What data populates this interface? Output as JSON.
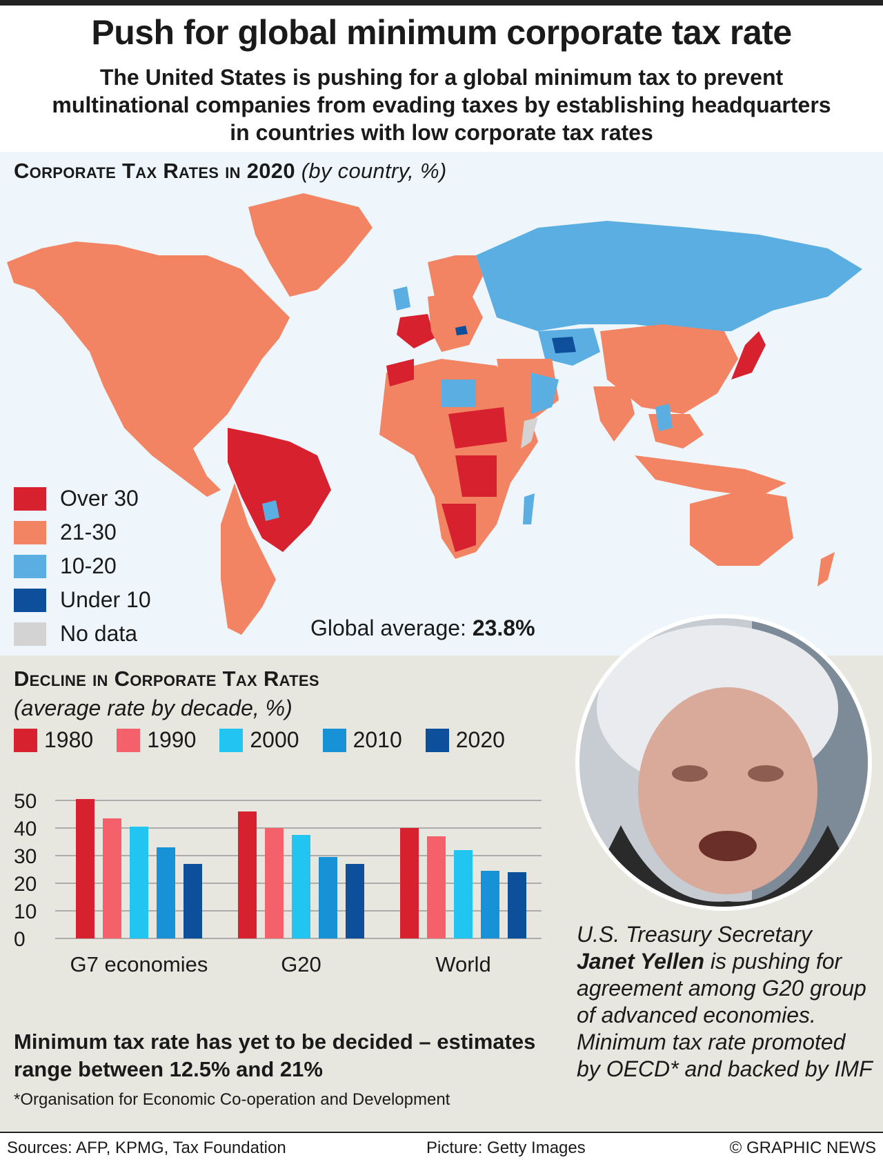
{
  "header": {
    "title": "Push for global minimum corporate tax rate",
    "subtitle": "The United States is pushing for a global minimum tax to prevent multinational companies from evading taxes by establishing headquarters in countries with low corporate tax rates"
  },
  "map": {
    "heading": "Corporate Tax Rates in 2020",
    "heading_note": "(by country, %)",
    "legend": [
      {
        "label": "Over 30",
        "color": "#d7212f"
      },
      {
        "label": "21-30",
        "color": "#f28464"
      },
      {
        "label": "10-20",
        "color": "#5aaee1"
      },
      {
        "label": "Under 10",
        "color": "#0e4f9c"
      },
      {
        "label": "No data",
        "color": "#d3d3d3"
      }
    ],
    "global_average_label": "Global average:",
    "global_average_value": "23.8%"
  },
  "decline": {
    "heading": "Decline in Corporate Tax Rates",
    "subheading": "(average rate by decade, %)",
    "note": "Minimum tax rate has yet to be decided – estimates range between 12.5% and 21%",
    "footnote": "*Organisation for Economic Co-operation and Development"
  },
  "chart_data": {
    "type": "bar",
    "categories": [
      "G7 economies",
      "G20",
      "World"
    ],
    "series": [
      {
        "name": "1980",
        "color": "#d7212f",
        "values": [
          50.5,
          46,
          40
        ]
      },
      {
        "name": "1990",
        "color": "#f4616b",
        "values": [
          43.5,
          40,
          37
        ]
      },
      {
        "name": "2000",
        "color": "#22c4f2",
        "values": [
          40.5,
          37.5,
          32
        ]
      },
      {
        "name": "2010",
        "color": "#1792d6",
        "values": [
          33,
          29.5,
          24.5
        ]
      },
      {
        "name": "2020",
        "color": "#0e4f9c",
        "values": [
          27,
          27,
          24
        ]
      }
    ],
    "yticks": [
      0,
      10,
      20,
      30,
      40,
      50
    ],
    "ylim": [
      0,
      55
    ],
    "grid": true
  },
  "photo_caption": {
    "prefix": "U.S. Treasury Secretary",
    "name": "Janet Yellen",
    "rest": "is pushing for agreement among G20 group of advanced economies. Minimum tax rate promoted by OECD* and backed by IMF"
  },
  "footer": {
    "sources": "Sources: AFP, KPMG, Tax Foundation",
    "picture": "Picture: Getty Images",
    "copyright": "© GRAPHIC NEWS"
  }
}
